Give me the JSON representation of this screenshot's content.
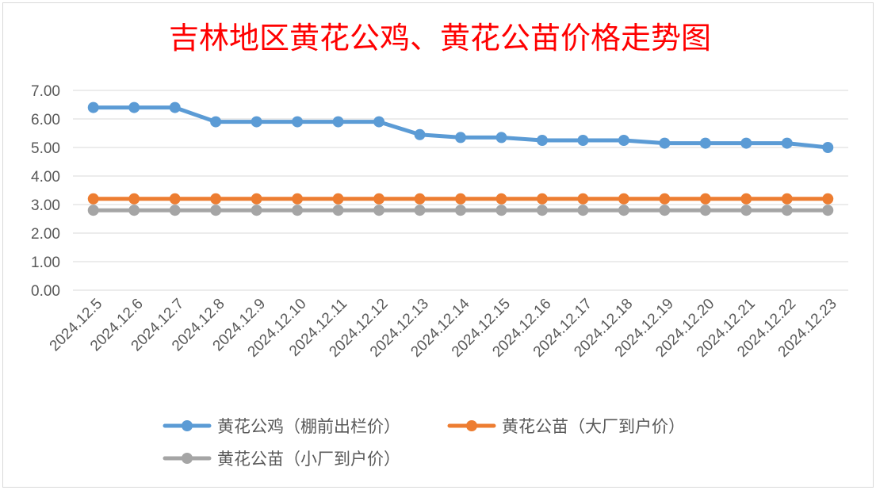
{
  "chart_data": {
    "type": "line",
    "title": "吉林地区黄花公鸡、黄花公苗价格走势图",
    "xlabel": "",
    "ylabel": "",
    "ylim": [
      0,
      7
    ],
    "yticks": [
      "0.00",
      "1.00",
      "2.00",
      "3.00",
      "4.00",
      "5.00",
      "6.00",
      "7.00"
    ],
    "grid": true,
    "legend_position": "bottom",
    "categories": [
      "2024.12.5",
      "2024.12.6",
      "2024.12.7",
      "2024.12.8",
      "2024.12.9",
      "2024.12.10",
      "2024.12.11",
      "2024.12.12",
      "2024.12.13",
      "2024.12.14",
      "2024.12.15",
      "2024.12.16",
      "2024.12.17",
      "2024.12.18",
      "2024.12.19",
      "2024.12.20",
      "2024.12.21",
      "2024.12.22",
      "2024.12.23"
    ],
    "series": [
      {
        "name": "黄花公鸡（棚前出栏价）",
        "color": "#5b9bd5",
        "values": [
          6.4,
          6.4,
          6.4,
          5.9,
          5.9,
          5.9,
          5.9,
          5.9,
          5.45,
          5.35,
          5.35,
          5.25,
          5.25,
          5.25,
          5.15,
          5.15,
          5.15,
          5.15,
          5.0
        ]
      },
      {
        "name": "黄花公苗（大厂到户价）",
        "color": "#ed7d31",
        "values": [
          3.2,
          3.2,
          3.2,
          3.2,
          3.2,
          3.2,
          3.2,
          3.2,
          3.2,
          3.2,
          3.2,
          3.2,
          3.2,
          3.2,
          3.2,
          3.2,
          3.2,
          3.2,
          3.2
        ]
      },
      {
        "name": "黄花公苗（小厂到户价）",
        "color": "#a5a5a5",
        "values": [
          2.8,
          2.8,
          2.8,
          2.8,
          2.8,
          2.8,
          2.8,
          2.8,
          2.8,
          2.8,
          2.8,
          2.8,
          2.8,
          2.8,
          2.8,
          2.8,
          2.8,
          2.8,
          2.8
        ]
      }
    ],
    "title_color": "#ff0000",
    "gridline_color": "#d9d9d9",
    "axis_text_color": "#595959"
  }
}
